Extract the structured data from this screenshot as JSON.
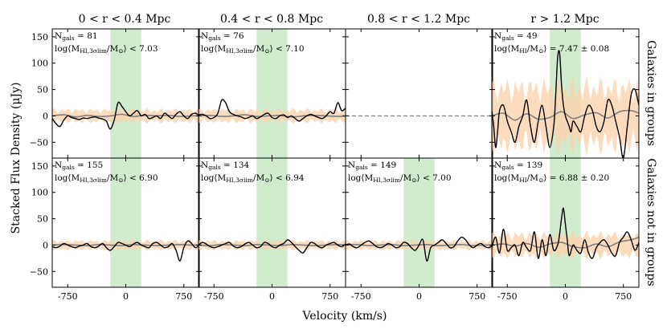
{
  "chart_data": {
    "type": "line",
    "figure": {
      "xlabel": "Velocity (km/s)",
      "ylabel": "Stacked Flux Density (μJy)",
      "xlim": [
        -950,
        950
      ],
      "ylim": [
        -80,
        165
      ],
      "xticks": [
        -750,
        0,
        750
      ],
      "xtick_labels": [
        "-750",
        "0",
        "750"
      ],
      "yticks": [
        -50,
        0,
        50,
        100,
        150
      ],
      "ytick_labels": [
        "−50",
        "0",
        "50",
        "100",
        "150"
      ],
      "column_titles": [
        "0 < r < 0.4 Mpc",
        "0.4 < r < 0.8 Mpc",
        "0.8 < r < 1.2 Mpc",
        "r > 1.2 Mpc"
      ],
      "row_labels": [
        "Galaxies in groups",
        "Galaxies not in groups"
      ],
      "highlight_band": [
        -200,
        200
      ],
      "colors": {
        "stack_line": "#000000",
        "reference_line": "#808080",
        "uncertainty_fill": "#fdd3ac",
        "velocity_band": "#b9e0b6",
        "zero_line": "#777777"
      }
    },
    "panels": [
      {
        "row": 0,
        "col": 0,
        "ngals": "N",
        "ngals_sub": "gals",
        "ngals_value": " = 81",
        "limit": "log⟨M",
        "limit_sub": "HI,3σlim",
        "limit_tail": "/M",
        "limit_sun": "⊙",
        "limit_value": "⟩ < 7.03",
        "band_half_width": 10,
        "series": [
          {
            "name": "stack",
            "x": [
              -950,
              -900,
              -850,
              -800,
              -750,
              -700,
              -650,
              -600,
              -550,
              -500,
              -450,
              -400,
              -350,
              -300,
              -250,
              -200,
              -150,
              -100,
              -50,
              0,
              50,
              100,
              150,
              200,
              250,
              300,
              350,
              400,
              450,
              500,
              550,
              600,
              650,
              700,
              750,
              800,
              850,
              900,
              950
            ],
            "y": [
              -5,
              -15,
              -20,
              -8,
              0,
              -3,
              -5,
              -7,
              -4,
              -5,
              -3,
              -2,
              -4,
              -6,
              -10,
              -25,
              -8,
              25,
              18,
              8,
              0,
              5,
              10,
              0,
              3,
              -5,
              -3,
              0,
              -5,
              5,
              0,
              -5,
              3,
              8,
              0,
              -5,
              3,
              5,
              0
            ]
          },
          {
            "name": "reference",
            "x": [
              -950,
              -800,
              -650,
              -500,
              -350,
              -200,
              -50,
              100,
              250,
              400,
              550,
              700,
              850,
              950
            ],
            "y": [
              0,
              2,
              -2,
              1,
              -1,
              0,
              3,
              -1,
              1,
              0,
              1,
              -1,
              0,
              0
            ]
          }
        ]
      },
      {
        "row": 0,
        "col": 1,
        "ngals": "N",
        "ngals_sub": "gals",
        "ngals_value": " = 76",
        "limit": "log⟨M",
        "limit_sub": "HI,3σlim",
        "limit_tail": "/M",
        "limit_sun": "⊙",
        "limit_value": "⟩ < 7.10",
        "band_half_width": 10,
        "series": [
          {
            "name": "stack",
            "x": [
              -950,
              -900,
              -850,
              -800,
              -750,
              -700,
              -650,
              -600,
              -550,
              -500,
              -450,
              -400,
              -350,
              -300,
              -250,
              -200,
              -150,
              -100,
              -50,
              0,
              50,
              100,
              150,
              200,
              250,
              300,
              350,
              400,
              450,
              500,
              550,
              600,
              650,
              700,
              750,
              800,
              850,
              900,
              950
            ],
            "y": [
              2,
              3,
              0,
              -5,
              -3,
              5,
              30,
              25,
              8,
              3,
              0,
              -2,
              -5,
              -3,
              0,
              -5,
              -2,
              3,
              5,
              -3,
              -5,
              0,
              2,
              -3,
              0,
              -5,
              -10,
              -5,
              0,
              3,
              0,
              -3,
              -5,
              0,
              8,
              5,
              25,
              10,
              15
            ]
          },
          {
            "name": "reference",
            "x": [
              -950,
              -800,
              -650,
              -500,
              -350,
              -200,
              -50,
              100,
              250,
              400,
              550,
              700,
              850,
              950
            ],
            "y": [
              0,
              1,
              -1,
              0,
              2,
              -1,
              0,
              1,
              -2,
              0,
              1,
              0,
              -1,
              0
            ]
          }
        ]
      },
      {
        "row": 0,
        "col": 2,
        "ngals": "",
        "ngals_sub": "",
        "ngals_value": "",
        "limit": "",
        "limit_sub": "",
        "limit_tail": "",
        "limit_sun": "",
        "limit_value": "",
        "band_half_width": 0,
        "dashed_zero": true,
        "series": []
      },
      {
        "row": 0,
        "col": 3,
        "ngals": "N",
        "ngals_sub": "gals",
        "ngals_value": " = 49",
        "detection": "log⟨M",
        "detection_sub": "HI",
        "detection_tail": "/M",
        "detection_sun": "⊙",
        "detection_value": "⟩ = 7.47 ± 0.08",
        "band_half_width": 50,
        "series": [
          {
            "name": "stack",
            "x": [
              -950,
              -925,
              -900,
              -875,
              -850,
              -800,
              -750,
              -700,
              -650,
              -600,
              -550,
              -500,
              -450,
              -400,
              -350,
              -300,
              -250,
              -200,
              -150,
              -125,
              -100,
              -75,
              -50,
              -25,
              0,
              25,
              50,
              75,
              100,
              150,
              200,
              250,
              300,
              350,
              400,
              450,
              500,
              550,
              600,
              650,
              700,
              750,
              800,
              850,
              900,
              950
            ],
            "y": [
              10,
              -20,
              -60,
              -30,
              10,
              20,
              -10,
              -30,
              -50,
              -20,
              0,
              30,
              -20,
              -50,
              -10,
              20,
              -20,
              -60,
              -20,
              40,
              110,
              120,
              60,
              20,
              0,
              -10,
              -20,
              -30,
              -10,
              -20,
              -30,
              0,
              20,
              10,
              -20,
              -30,
              -10,
              30,
              20,
              -10,
              -40,
              -80,
              -20,
              40,
              50,
              20
            ]
          },
          {
            "name": "reference",
            "x": [
              -950,
              -800,
              -650,
              -500,
              -350,
              -200,
              -50,
              100,
              250,
              400,
              550,
              700,
              850,
              950
            ],
            "y": [
              0,
              5,
              -8,
              4,
              -6,
              -3,
              8,
              -5,
              2,
              6,
              -4,
              8,
              10,
              5
            ]
          }
        ]
      },
      {
        "row": 1,
        "col": 0,
        "ngals": "N",
        "ngals_sub": "gals",
        "ngals_value": " = 155",
        "limit": "log⟨M",
        "limit_sub": "HI,3σlim",
        "limit_tail": "/M",
        "limit_sun": "⊙",
        "limit_value": "⟩ < 6.90",
        "band_half_width": 7,
        "series": [
          {
            "name": "stack",
            "x": [
              -950,
              -900,
              -850,
              -800,
              -750,
              -700,
              -650,
              -600,
              -550,
              -500,
              -450,
              -400,
              -350,
              -300,
              -250,
              -200,
              -150,
              -100,
              -50,
              0,
              50,
              100,
              150,
              200,
              250,
              300,
              350,
              400,
              450,
              500,
              550,
              600,
              650,
              700,
              750,
              800,
              850,
              900,
              950
            ],
            "y": [
              -3,
              -5,
              -2,
              3,
              0,
              -3,
              -5,
              -2,
              0,
              3,
              -3,
              -5,
              -2,
              3,
              -5,
              -10,
              -3,
              5,
              3,
              0,
              -3,
              2,
              5,
              0,
              -3,
              -5,
              3,
              5,
              0,
              -5,
              -3,
              3,
              -10,
              -30,
              -5,
              8,
              3,
              -5,
              0
            ]
          },
          {
            "name": "reference",
            "x": [
              -950,
              -800,
              -650,
              -500,
              -350,
              -200,
              -50,
              100,
              250,
              400,
              550,
              700,
              850,
              950
            ],
            "y": [
              0,
              1,
              0,
              -1,
              1,
              0,
              -1,
              1,
              0,
              -1,
              0,
              1,
              0,
              0
            ]
          }
        ]
      },
      {
        "row": 1,
        "col": 1,
        "ngals": "N",
        "ngals_sub": "gals",
        "ngals_value": " = 134",
        "limit": "log⟨M",
        "limit_sub": "HI,3σlim",
        "limit_tail": "/M",
        "limit_sun": "⊙",
        "limit_value": "⟩ < 6.94",
        "band_half_width": 7,
        "series": [
          {
            "name": "stack",
            "x": [
              -950,
              -900,
              -850,
              -800,
              -750,
              -700,
              -650,
              -600,
              -550,
              -500,
              -450,
              -400,
              -350,
              -300,
              -250,
              -200,
              -150,
              -100,
              -50,
              0,
              50,
              100,
              150,
              200,
              250,
              300,
              350,
              400,
              450,
              500,
              550,
              600,
              650,
              700,
              750,
              800,
              850,
              900,
              950
            ],
            "y": [
              0,
              5,
              2,
              -3,
              -5,
              -3,
              0,
              3,
              5,
              -2,
              -5,
              -3,
              2,
              5,
              0,
              -5,
              -3,
              5,
              3,
              -3,
              -5,
              0,
              3,
              10,
              5,
              -3,
              -10,
              -15,
              -5,
              5,
              3,
              -3,
              -5,
              0,
              3,
              5,
              0,
              -3,
              2
            ]
          },
          {
            "name": "reference",
            "x": [
              -950,
              -800,
              -650,
              -500,
              -350,
              -200,
              -50,
              100,
              250,
              400,
              550,
              700,
              850,
              950
            ],
            "y": [
              0,
              -1,
              1,
              0,
              -1,
              1,
              0,
              -1,
              1,
              0,
              -1,
              0,
              1,
              0
            ]
          }
        ]
      },
      {
        "row": 1,
        "col": 2,
        "ngals": "N",
        "ngals_sub": "gals",
        "ngals_value": " = 149",
        "limit": "log⟨M",
        "limit_sub": "HI,3σlim",
        "limit_tail": "/M",
        "limit_sun": "⊙",
        "limit_value": "⟩ < 7.00",
        "band_half_width": 7,
        "series": [
          {
            "name": "stack",
            "x": [
              -950,
              -900,
              -850,
              -800,
              -750,
              -700,
              -650,
              -600,
              -550,
              -500,
              -450,
              -400,
              -350,
              -300,
              -250,
              -200,
              -150,
              -100,
              -50,
              0,
              50,
              100,
              150,
              200,
              250,
              300,
              350,
              400,
              450,
              500,
              550,
              600,
              650,
              700,
              750,
              800,
              850,
              900,
              950
            ],
            "y": [
              0,
              2,
              -3,
              -5,
              0,
              5,
              8,
              3,
              -3,
              -5,
              -2,
              3,
              0,
              -5,
              -3,
              5,
              3,
              -5,
              -10,
              0,
              10,
              -30,
              -5,
              0,
              5,
              10,
              3,
              -5,
              -3,
              8,
              15,
              10,
              0,
              -5,
              0,
              3,
              -3,
              -5,
              0
            ]
          },
          {
            "name": "reference",
            "x": [
              -950,
              -800,
              -650,
              -500,
              -350,
              -200,
              -50,
              100,
              250,
              400,
              550,
              700,
              850,
              950
            ],
            "y": [
              0,
              1,
              -1,
              0,
              1,
              -1,
              0,
              1,
              -1,
              0,
              1,
              -1,
              0,
              0
            ]
          }
        ]
      },
      {
        "row": 1,
        "col": 3,
        "ngals": "N",
        "ngals_sub": "gals",
        "ngals_value": " = 139",
        "detection": "log⟨M",
        "detection_sub": "HI",
        "detection_tail": "/M",
        "detection_sun": "⊙",
        "detection_value": "⟩ = 6.88 ± 0.20",
        "band_half_width": 18,
        "series": [
          {
            "name": "stack",
            "x": [
              -950,
              -900,
              -850,
              -800,
              -750,
              -700,
              -650,
              -600,
              -550,
              -500,
              -450,
              -400,
              -350,
              -300,
              -250,
              -200,
              -150,
              -100,
              -75,
              -50,
              -25,
              0,
              25,
              50,
              100,
              150,
              200,
              250,
              300,
              350,
              400,
              450,
              500,
              550,
              600,
              650,
              700,
              750,
              800,
              850,
              900,
              950
            ],
            "y": [
              -5,
              15,
              -15,
              30,
              -10,
              -5,
              0,
              -20,
              5,
              -5,
              -10,
              25,
              -25,
              10,
              -20,
              20,
              -10,
              0,
              20,
              50,
              70,
              40,
              10,
              -20,
              0,
              -10,
              -15,
              10,
              -15,
              -25,
              -5,
              5,
              10,
              0,
              -15,
              -20,
              5,
              15,
              25,
              10,
              -10,
              5
            ]
          },
          {
            "name": "reference",
            "x": [
              -950,
              -800,
              -650,
              -500,
              -350,
              -200,
              -50,
              100,
              250,
              400,
              550,
              700,
              850,
              950
            ],
            "y": [
              0,
              2,
              -2,
              3,
              -4,
              2,
              5,
              -3,
              -5,
              2,
              -3,
              6,
              10,
              15
            ]
          }
        ]
      }
    ]
  }
}
